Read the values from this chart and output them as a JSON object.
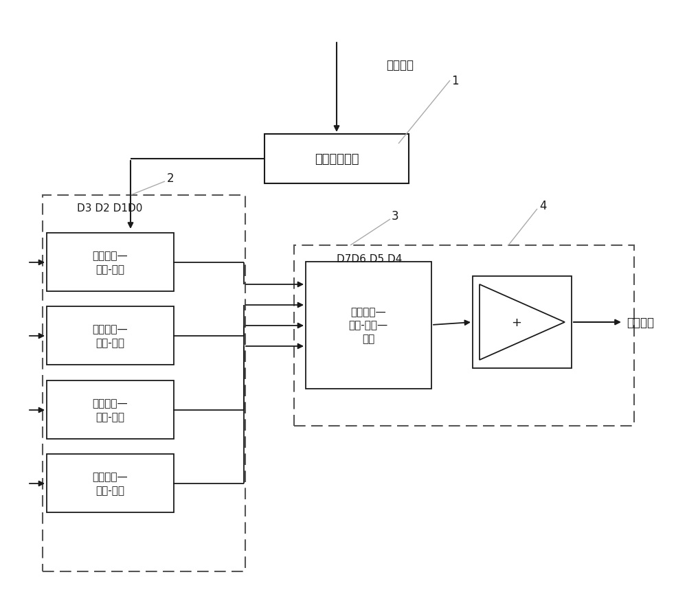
{
  "bg_color": "#ffffff",
  "line_color": "#1a1a1a",
  "box_color": "#ffffff",
  "font_size_main": 12,
  "font_size_small": 11,
  "pixel_data_label": "像素数据",
  "top_box_label": "数据位数拆分",
  "low_box_label": "低位转换—\n伽马-灰阶",
  "synth_box_label": "低位转换—\n伽马-灰阶—\n合成",
  "display_label": "显示数据",
  "d3_label": "D3 D2 D1D0",
  "d7_label": "D7D6 D5 D4",
  "label1": "1",
  "label2": "2",
  "label3": "3",
  "label4": "4",
  "figsize": [
    10.0,
    8.79
  ],
  "dpi": 100,
  "xlim": [
    0,
    1000
  ],
  "ylim": [
    0,
    879
  ]
}
